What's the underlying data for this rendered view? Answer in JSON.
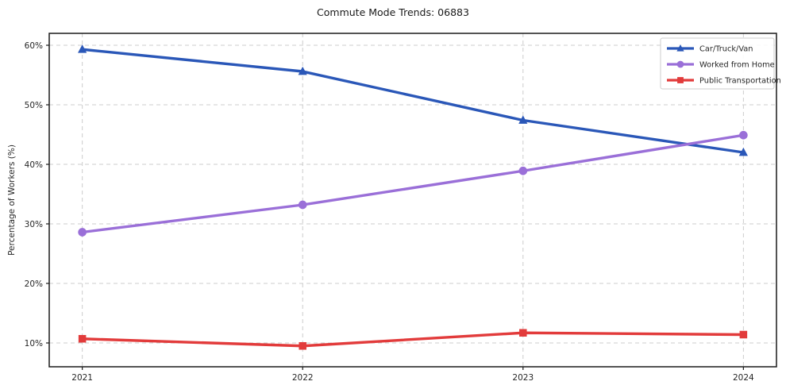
{
  "page": {
    "title": "Commute Mode Trends: 06883"
  },
  "chart_data": {
    "type": "line",
    "title": "Commute Mode Trends: 06883",
    "xlabel": "",
    "ylabel": "Percentage of Workers (%)",
    "x": [
      2021,
      2022,
      2023,
      2024
    ],
    "x_tick_labels": [
      "2021",
      "2022",
      "2023",
      "2024"
    ],
    "series": [
      {
        "name": "Car/Truck/Van",
        "marker": "triangle",
        "color": "#2a57b8",
        "values": [
          59.3,
          55.6,
          47.4,
          42.0
        ]
      },
      {
        "name": "Worked from Home",
        "marker": "circle",
        "color": "#9a6fd8",
        "values": [
          28.6,
          33.2,
          38.9,
          44.9
        ]
      },
      {
        "name": "Public Transportation",
        "marker": "square",
        "color": "#e23b3b",
        "values": [
          10.7,
          9.5,
          11.7,
          11.4
        ]
      }
    ],
    "yticks": [
      10,
      20,
      30,
      40,
      50,
      60
    ],
    "ytick_suffix": "%",
    "ylim": [
      6,
      62
    ],
    "xlim": [
      2020.85,
      2024.15
    ],
    "grid": "both-dashed",
    "legend_position": "upper-right",
    "colors": {
      "grid": "#cccccc",
      "axis": "#1a1a1a",
      "text": "#262626",
      "background": "#ffffff",
      "legend_border": "#cccccc"
    }
  }
}
